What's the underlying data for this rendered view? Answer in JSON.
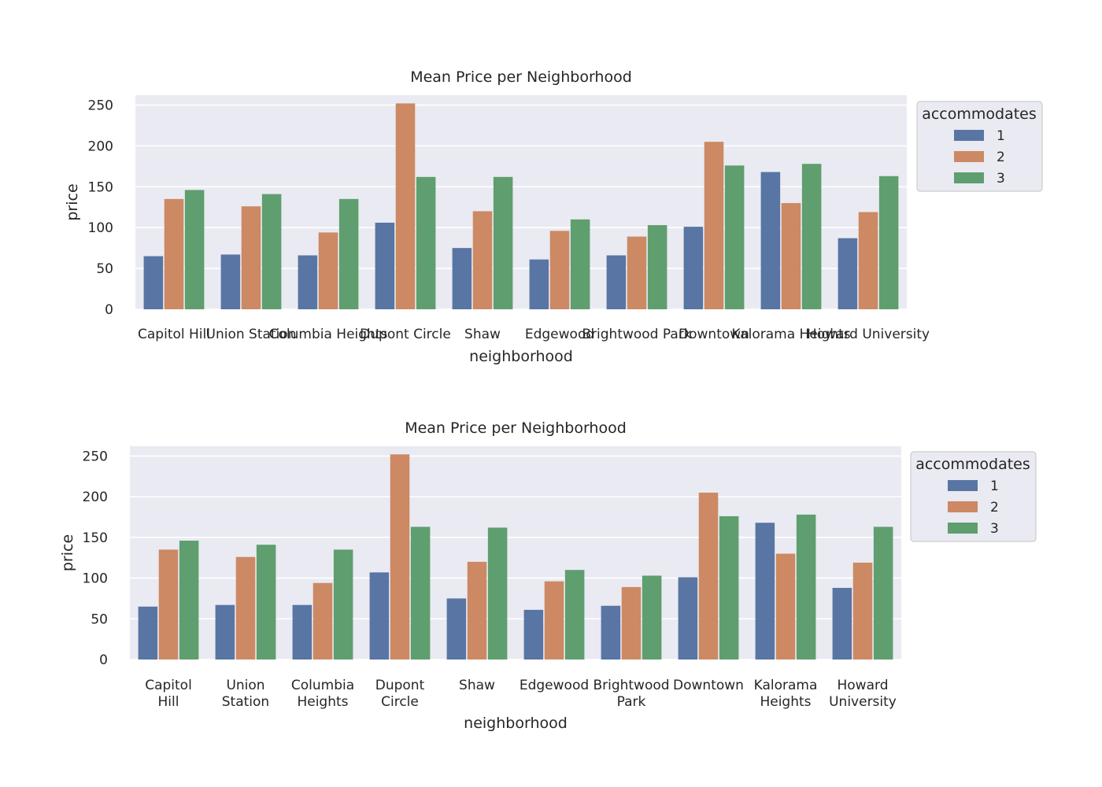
{
  "chart_data": [
    {
      "type": "bar",
      "title": "Mean Price per Neighborhood",
      "xlabel": "neighborhood",
      "ylabel": "price",
      "ylim": [
        0,
        262
      ],
      "yticks": [
        0,
        50,
        100,
        150,
        200,
        250
      ],
      "grid": true,
      "legend": {
        "title": "accommodates",
        "placement": "outside-right-top"
      },
      "categories": [
        "Capitol Hill",
        "Union Station",
        "Columbia Heights",
        "Dupont Circle",
        "Shaw",
        "Edgewood",
        "Brightwood Park",
        "Downtown",
        "Kalorama Heights",
        "Howard University"
      ],
      "category_label_lines": [
        [
          "Capitol Hill"
        ],
        [
          "Union Station"
        ],
        [
          "Columbia Heights"
        ],
        [
          "Dupont Circle"
        ],
        [
          "Shaw"
        ],
        [
          "Edgewood"
        ],
        [
          "Brightwood Park"
        ],
        [
          "Downtown"
        ],
        [
          "Kalorama Heights"
        ],
        [
          "Howard University"
        ]
      ],
      "series": [
        {
          "name": "1",
          "color": "#5875a4",
          "values": [
            65,
            67,
            66,
            106,
            75,
            61,
            66,
            101,
            168,
            87
          ]
        },
        {
          "name": "2",
          "color": "#cc8963",
          "values": [
            135,
            126,
            94,
            252,
            120,
            96,
            89,
            205,
            130,
            119
          ]
        },
        {
          "name": "3",
          "color": "#5f9e6e",
          "values": [
            146,
            141,
            135,
            162,
            162,
            110,
            103,
            176,
            178,
            163
          ]
        }
      ]
    },
    {
      "type": "bar",
      "title": "Mean Price per Neighborhood",
      "xlabel": "neighborhood",
      "ylabel": "price",
      "ylim": [
        0,
        262
      ],
      "yticks": [
        0,
        50,
        100,
        150,
        200,
        250
      ],
      "grid": true,
      "legend": {
        "title": "accommodates",
        "placement": "outside-right-top"
      },
      "categories": [
        "Capitol Hill",
        "Union Station",
        "Columbia Heights",
        "Dupont Circle",
        "Shaw",
        "Edgewood",
        "Brightwood Park",
        "Downtown",
        "Kalorama Heights",
        "Howard University"
      ],
      "category_label_lines": [
        [
          "Capitol",
          "Hill"
        ],
        [
          "Union",
          "Station"
        ],
        [
          "Columbia",
          "Heights"
        ],
        [
          "Dupont",
          "Circle"
        ],
        [
          "Shaw"
        ],
        [
          "Edgewood"
        ],
        [
          "Brightwood",
          "Park"
        ],
        [
          "Downtown"
        ],
        [
          "Kalorama",
          "Heights"
        ],
        [
          "Howard",
          "University"
        ]
      ],
      "series": [
        {
          "name": "1",
          "color": "#5875a4",
          "values": [
            65,
            67,
            67,
            107,
            75,
            61,
            66,
            101,
            168,
            88
          ]
        },
        {
          "name": "2",
          "color": "#cc8963",
          "values": [
            135,
            126,
            94,
            252,
            120,
            96,
            89,
            205,
            130,
            119
          ]
        },
        {
          "name": "3",
          "color": "#5f9e6e",
          "values": [
            146,
            141,
            135,
            163,
            162,
            110,
            103,
            176,
            178,
            163
          ]
        }
      ]
    }
  ]
}
